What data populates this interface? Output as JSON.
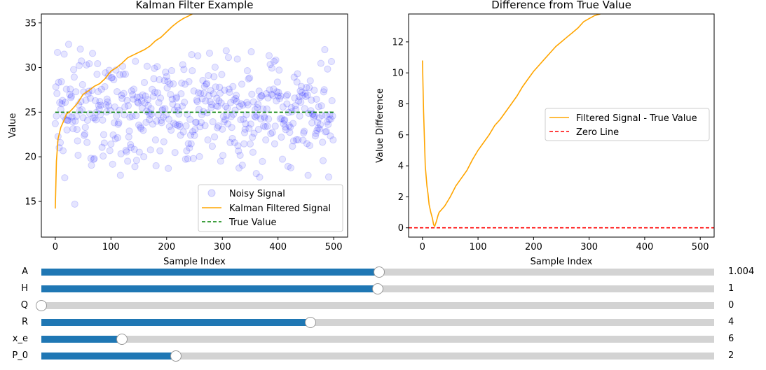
{
  "chart_data": [
    {
      "type": "scatter+line",
      "title": "Kalman Filter Example",
      "xlabel": "Sample Index",
      "ylabel": "Value",
      "xlim": [
        -25,
        525
      ],
      "ylim": [
        11,
        36
      ],
      "xticks": [
        0,
        100,
        200,
        300,
        400,
        500
      ],
      "yticks": [
        15,
        20,
        25,
        30,
        35
      ],
      "legend_position": "lower-right",
      "series": [
        {
          "name": "Noisy Signal",
          "kind": "scatter",
          "color": "#0000ff",
          "approx_mean": 25,
          "approx_std": 3,
          "n": 500
        },
        {
          "name": "Kalman Filtered Signal",
          "kind": "line",
          "color": "#ffa500",
          "x": [
            0,
            2,
            5,
            10,
            15,
            20,
            25,
            30,
            40,
            50,
            60,
            70,
            80,
            90,
            100,
            110,
            120,
            130,
            140,
            150,
            160,
            170,
            180,
            190,
            200,
            210,
            220,
            230,
            240,
            246
          ],
          "y": [
            14.2,
            19.5,
            22.0,
            23.3,
            24.0,
            24.8,
            25.0,
            25.3,
            26.0,
            27.0,
            27.4,
            27.9,
            28.2,
            28.8,
            29.6,
            30.0,
            30.5,
            31.1,
            31.4,
            31.7,
            32.0,
            32.4,
            33.0,
            33.4,
            34.0,
            34.6,
            35.1,
            35.5,
            35.8,
            36.0
          ]
        },
        {
          "name": "True Value",
          "kind": "line",
          "style": "dashed",
          "color": "#008000",
          "x": [
            0,
            500
          ],
          "y": [
            25,
            25
          ]
        }
      ]
    },
    {
      "type": "line",
      "title": "Difference from True Value",
      "xlabel": "Sample Index",
      "ylabel": "Value Difference",
      "xlim": [
        -25,
        525
      ],
      "ylim": [
        -0.6,
        13.8
      ],
      "xticks": [
        0,
        100,
        200,
        300,
        400,
        500
      ],
      "yticks": [
        0,
        2,
        4,
        6,
        8,
        10,
        12
      ],
      "legend_position": "center-right",
      "series": [
        {
          "name": "Filtered Signal - True Value",
          "kind": "line",
          "color": "#ffa500",
          "x": [
            0,
            2,
            5,
            8,
            10,
            12,
            15,
            18,
            20,
            22,
            25,
            28,
            30,
            35,
            40,
            50,
            60,
            70,
            80,
            90,
            100,
            110,
            120,
            130,
            140,
            150,
            160,
            170,
            180,
            190,
            200,
            210,
            220,
            230,
            240,
            250,
            260,
            270,
            280,
            290,
            300,
            310,
            320
          ],
          "y": [
            10.8,
            7.5,
            4.0,
            2.7,
            2.2,
            1.5,
            1.0,
            0.6,
            0.2,
            0.1,
            0.4,
            0.8,
            1.0,
            1.2,
            1.4,
            2.0,
            2.7,
            3.2,
            3.7,
            4.4,
            5.0,
            5.5,
            6.0,
            6.6,
            7.0,
            7.5,
            8.0,
            8.5,
            9.1,
            9.6,
            10.1,
            10.5,
            10.9,
            11.3,
            11.7,
            12.0,
            12.3,
            12.6,
            12.9,
            13.3,
            13.5,
            13.7,
            13.8
          ]
        },
        {
          "name": "Zero Line",
          "kind": "line",
          "style": "dashed",
          "color": "#ff0000",
          "x": [
            -25,
            525
          ],
          "y": [
            0,
            0
          ]
        }
      ]
    }
  ],
  "sliders": [
    {
      "label": "A",
      "value_text": "1.004",
      "fraction": 0.502
    },
    {
      "label": "H",
      "value_text": "1",
      "fraction": 0.5
    },
    {
      "label": "Q",
      "value_text": "0",
      "fraction": 0.0
    },
    {
      "label": "R",
      "value_text": "4",
      "fraction": 0.4
    },
    {
      "label": "x_e",
      "value_text": "6",
      "fraction": 0.12
    },
    {
      "label": "P_0",
      "value_text": "2",
      "fraction": 0.2
    }
  ],
  "colors": {
    "slider_fill": "#1f77b4",
    "slider_track": "#d3d3d3"
  }
}
